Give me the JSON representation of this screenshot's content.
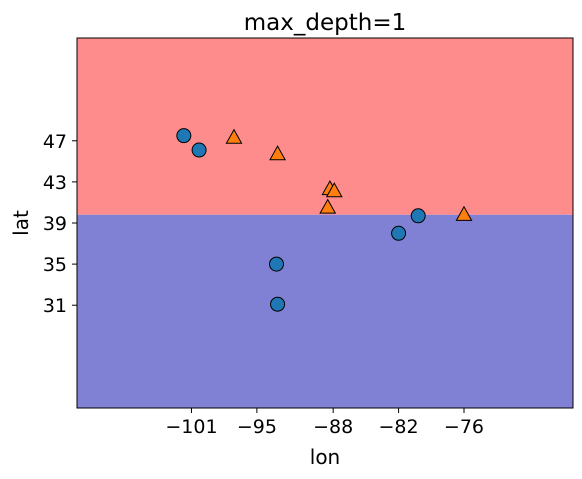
{
  "chart_data": {
    "type": "scatter",
    "title": "max_depth=1",
    "xlabel": "lon",
    "ylabel": "lat",
    "xlim": [
      -111.5,
      -66.0
    ],
    "ylim": [
      21.0,
      57.0
    ],
    "xticks": [
      -101,
      -95,
      -88,
      -82,
      -76
    ],
    "xtick_labels": [
      "−101",
      "−95",
      "−88",
      "−82",
      "−76"
    ],
    "yticks": [
      31,
      35,
      39,
      43,
      47
    ],
    "ytick_labels": [
      "31",
      "35",
      "39",
      "43",
      "47"
    ],
    "grid": false,
    "decision_regions": {
      "split_feature": "lat",
      "threshold": 39.8,
      "below_color": "#8080d4",
      "above_color": "#ff8c8c"
    },
    "series": [
      {
        "marker": "circle",
        "color": "#1f77b4",
        "points": [
          {
            "x": -101.7,
            "y": 47.5
          },
          {
            "x": -100.3,
            "y": 46.1
          },
          {
            "x": -93.2,
            "y": 35.0
          },
          {
            "x": -93.1,
            "y": 31.1
          },
          {
            "x": -82.0,
            "y": 38.0
          },
          {
            "x": -80.2,
            "y": 39.7
          }
        ]
      },
      {
        "marker": "triangle",
        "color": "#ff7f0e",
        "points": [
          {
            "x": -97.1,
            "y": 47.3
          },
          {
            "x": -93.1,
            "y": 45.7
          },
          {
            "x": -88.3,
            "y": 42.3
          },
          {
            "x": -87.9,
            "y": 42.1
          },
          {
            "x": -88.5,
            "y": 40.5
          },
          {
            "x": -76.0,
            "y": 39.8
          }
        ]
      }
    ]
  }
}
